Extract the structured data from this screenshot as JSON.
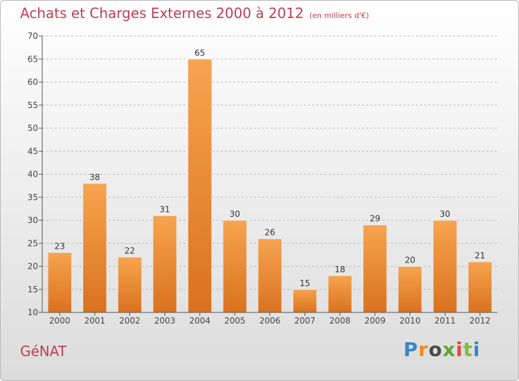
{
  "colors": {
    "title": "#c03d57",
    "bar_top": "#f7a450",
    "bar_bottom": "#d9721f",
    "grid": "#b8b8b8"
  },
  "chart_data": {
    "type": "bar",
    "title": "Achats et Charges Externes 2000 à 2012",
    "subtitle": "(en milliers d'€)",
    "categories": [
      "2000",
      "2001",
      "2002",
      "2003",
      "2004",
      "2005",
      "2006",
      "2007",
      "2008",
      "2009",
      "2010",
      "2011",
      "2012"
    ],
    "values": [
      23,
      38,
      22,
      31,
      65,
      30,
      26,
      15,
      18,
      29,
      20,
      30,
      21
    ],
    "xlabel": "",
    "ylabel": "",
    "ylim": [
      10,
      70
    ],
    "yticks": [
      10,
      15,
      20,
      25,
      30,
      35,
      40,
      45,
      50,
      55,
      60,
      65,
      70
    ],
    "grid": true,
    "data_labels": true
  },
  "footer": {
    "commune": "GéNAT",
    "brand_letters": [
      "P",
      "r",
      "o",
      "x",
      "i",
      "t",
      "i"
    ]
  }
}
